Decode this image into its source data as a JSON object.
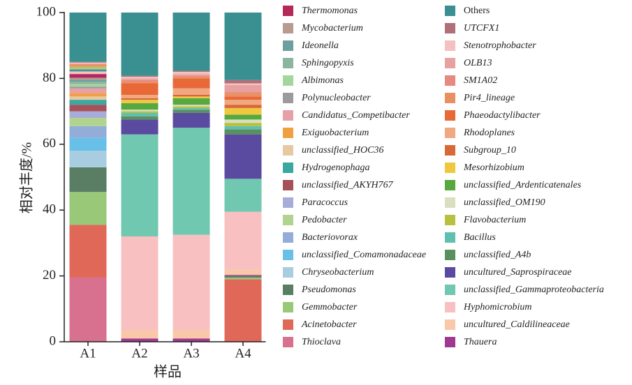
{
  "chart_data": {
    "type": "stacked_bar",
    "xlabel": "样品",
    "ylabel": "相对丰度/%",
    "categories": [
      "A1",
      "A2",
      "A3",
      "A4"
    ],
    "ylim": [
      0,
      100
    ],
    "yticks": [
      0,
      20,
      40,
      60,
      80,
      100
    ],
    "series": [
      {
        "name": "Thioclava",
        "color": "#d87090",
        "values": [
          19.5,
          0,
          0,
          0
        ]
      },
      {
        "name": "Acinetobacter",
        "color": "#e06858",
        "values": [
          16,
          0,
          0,
          19
        ]
      },
      {
        "name": "Gemmobacter",
        "color": "#98c878",
        "values": [
          10,
          0,
          0,
          0.5
        ]
      },
      {
        "name": "Pseudomonas",
        "color": "#5a7e64",
        "values": [
          7.5,
          0,
          0,
          0.5
        ]
      },
      {
        "name": "Chryseobacterium",
        "color": "#a8cce0",
        "values": [
          5,
          0,
          0,
          0
        ]
      },
      {
        "name": "unclassified_Comamonadaceae",
        "color": "#68c0e8",
        "values": [
          4,
          0,
          0,
          0
        ]
      },
      {
        "name": "Bacteriovorax",
        "color": "#94acd8",
        "values": [
          3.5,
          0,
          0,
          0
        ]
      },
      {
        "name": "Pedobacter",
        "color": "#b0d490",
        "values": [
          2.5,
          0,
          0,
          0
        ]
      },
      {
        "name": "Paracoccus",
        "color": "#a8acd8",
        "values": [
          2,
          0,
          0,
          0
        ]
      },
      {
        "name": "unclassified_AKYH767",
        "color": "#a85058",
        "values": [
          2,
          0,
          0,
          0
        ]
      },
      {
        "name": "Hydrogenophaga",
        "color": "#3aa8a0",
        "values": [
          1.5,
          0,
          0,
          0
        ]
      },
      {
        "name": "unclassified_HOC36",
        "color": "#e8c8a0",
        "values": [
          1,
          0,
          0,
          0
        ]
      },
      {
        "name": "Exiguobacterium",
        "color": "#f0a040",
        "values": [
          1,
          0,
          0,
          0
        ]
      },
      {
        "name": "Candidatus_Competibacter",
        "color": "#e8a0a8",
        "values": [
          1.5,
          0,
          0,
          0
        ]
      },
      {
        "name": "Polynucleobacter",
        "color": "#9b9b9b",
        "values": [
          0.5,
          0,
          0,
          0
        ]
      },
      {
        "name": "Albimonas",
        "color": "#a3d69a",
        "values": [
          0.8,
          0,
          0,
          0
        ]
      },
      {
        "name": "Sphingopyxis",
        "color": "#8db4a0",
        "values": [
          0.7,
          0,
          0,
          0
        ]
      },
      {
        "name": "Ideonella",
        "color": "#6d9ea0",
        "values": [
          0.6,
          0,
          0,
          0
        ]
      },
      {
        "name": "Mycobacterium",
        "color": "#b89a90",
        "values": [
          0.6,
          0,
          0,
          0
        ]
      },
      {
        "name": "Thermomonas",
        "color": "#b5285a",
        "values": [
          1,
          0,
          0,
          0
        ]
      },
      {
        "name": "Thauera",
        "color": "#a03890",
        "values": [
          0.2,
          1,
          1,
          0.3
        ]
      },
      {
        "name": "uncultured_Caldilineaceae",
        "color": "#f8c8a8",
        "values": [
          0.3,
          2.5,
          2.5,
          1.7
        ]
      },
      {
        "name": "Hyphomicrobium",
        "color": "#f8c0c0",
        "values": [
          0.3,
          28.5,
          29,
          17.5
        ]
      },
      {
        "name": "unclassified_Gammaproteobacteria",
        "color": "#70c8b0",
        "values": [
          0.3,
          31,
          32.5,
          10
        ]
      },
      {
        "name": "uncultured_Saprospiraceae",
        "color": "#5a4aa0",
        "values": [
          0.2,
          4.5,
          4.5,
          13.5
        ]
      },
      {
        "name": "unclassified_A4b",
        "color": "#5a9060",
        "values": [
          0.2,
          1,
          1,
          1.5
        ]
      },
      {
        "name": "Bacillus",
        "color": "#60c0b0",
        "values": [
          0.2,
          1,
          0.5,
          1
        ]
      },
      {
        "name": "Flavobacterium",
        "color": "#b8c040",
        "values": [
          0.2,
          0.5,
          0.5,
          1
        ]
      },
      {
        "name": "unclassified_OM190",
        "color": "#d8e0c0",
        "values": [
          0.1,
          0.5,
          0.5,
          1
        ]
      },
      {
        "name": "unclassified_Ardenticatenales",
        "color": "#58a840",
        "values": [
          0.2,
          2,
          2,
          1.5
        ]
      },
      {
        "name": "Mesorhizobium",
        "color": "#f0c840",
        "values": [
          0.2,
          1,
          0.5,
          2
        ]
      },
      {
        "name": "Subgroup_10",
        "color": "#d86838",
        "values": [
          0.1,
          0.5,
          0.5,
          1
        ]
      },
      {
        "name": "Rhodoplanes",
        "color": "#f0a880",
        "values": [
          0.2,
          1,
          2,
          1.5
        ]
      },
      {
        "name": "Phaeodactylibacter",
        "color": "#e86838",
        "values": [
          0.2,
          3.5,
          3,
          1
        ]
      },
      {
        "name": "Pir4_lineage",
        "color": "#e89060",
        "values": [
          0.1,
          0.5,
          0.5,
          1
        ]
      },
      {
        "name": "SM1A02",
        "color": "#e88880",
        "values": [
          0.1,
          0.5,
          0.3,
          0.5
        ]
      },
      {
        "name": "OLB13",
        "color": "#e8a0a0",
        "values": [
          0.2,
          0.5,
          0.5,
          2
        ]
      },
      {
        "name": "Stenotrophobacter",
        "color": "#f4c0c0",
        "values": [
          0.3,
          0.5,
          0.7,
          0.5
        ]
      },
      {
        "name": "UTCFX1",
        "color": "#b07078",
        "values": [
          0.2,
          0.3,
          0.3,
          1
        ]
      },
      {
        "name": "Others",
        "color": "#3a9090",
        "values": [
          15,
          19.2,
          17.7,
          20.5
        ]
      }
    ]
  }
}
